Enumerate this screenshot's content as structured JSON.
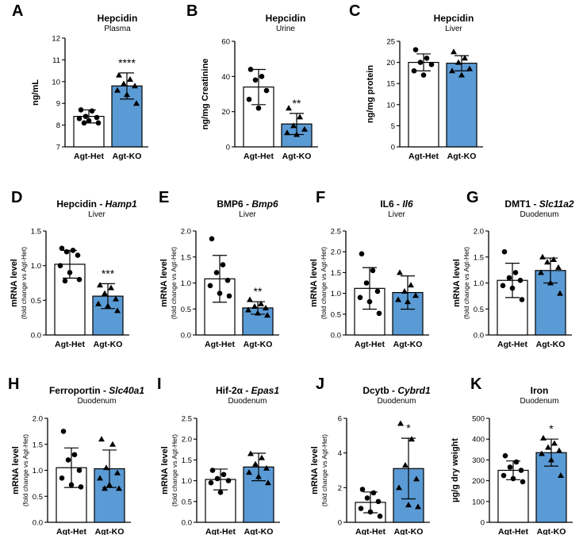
{
  "colors": {
    "het_fill": "#ffffff",
    "ko_fill": "#5b9bd5",
    "ink": "#000000"
  },
  "chart_data": [
    {
      "type": "bar",
      "panel_letter": "A",
      "title": "Hepcidin",
      "subtitle": "Plasma",
      "ylabel_main": "ng/mL",
      "ylabel_sub": "",
      "categories": [
        "Agt-Het",
        "Agt-KO"
      ],
      "ylim": [
        7,
        12
      ],
      "yticks": [
        7,
        8,
        9,
        10,
        11,
        12
      ],
      "ytick_labels": [
        "7",
        "8",
        "9",
        "10",
        "11",
        "12"
      ],
      "series": [
        {
          "name": "Agt-Het",
          "mean": 8.4,
          "sd": 0.3,
          "points": [
            8.7,
            8.65,
            8.4,
            8.35,
            8.3,
            8.2,
            8.1,
            8.1
          ]
        },
        {
          "name": "Agt-KO",
          "mean": 9.8,
          "sd": 0.6,
          "points": [
            10.3,
            10.1,
            9.9,
            9.8,
            9.6,
            9.4,
            9.0
          ]
        }
      ],
      "significance": "****"
    },
    {
      "type": "bar",
      "panel_letter": "B",
      "title": "Hepcidin",
      "subtitle": "Urine",
      "ylabel_main": "ng/mg Creatinine",
      "ylabel_sub": "",
      "categories": [
        "Agt-Het",
        "Agt-KO"
      ],
      "ylim": [
        0,
        60
      ],
      "yticks": [
        0,
        20,
        40,
        60
      ],
      "ytick_labels": [
        "0",
        "20",
        "40",
        "60"
      ],
      "series": [
        {
          "name": "Agt-Het",
          "mean": 34,
          "sd": 10,
          "points": [
            44,
            40,
            38,
            32,
            27,
            22
          ]
        },
        {
          "name": "Agt-KO",
          "mean": 13,
          "sd": 6,
          "points": [
            22,
            17,
            12,
            10,
            8,
            7
          ]
        }
      ],
      "significance": "**"
    },
    {
      "type": "bar",
      "panel_letter": "C",
      "title": "Hepcidin",
      "subtitle": "Liver",
      "ylabel_main": "ng/mg protein",
      "ylabel_sub": "",
      "categories": [
        "Agt-Het",
        "Agt-KO"
      ],
      "ylim": [
        0,
        25
      ],
      "yticks": [
        0,
        5,
        10,
        15,
        20,
        25
      ],
      "ytick_labels": [
        "0",
        "5",
        "10",
        "15",
        "20",
        "25"
      ],
      "series": [
        {
          "name": "Agt-Het",
          "mean": 20,
          "sd": 2,
          "points": [
            23,
            21,
            20,
            19.5,
            18,
            17
          ]
        },
        {
          "name": "Agt-KO",
          "mean": 19.8,
          "sd": 1.8,
          "points": [
            22.5,
            21,
            20,
            18.5,
            18,
            17
          ]
        }
      ],
      "significance": ""
    },
    {
      "type": "bar",
      "panel_letter": "D",
      "title": "Hepcidin - ",
      "title_italic": "Hamp1",
      "subtitle": "Liver",
      "ylabel_main": "mRNA level",
      "ylabel_sub": "(fold change vs Agt-Het)",
      "categories": [
        "Agt-Het",
        "Agt-KO"
      ],
      "ylim": [
        0,
        1.5
      ],
      "yticks": [
        0,
        0.5,
        1.0,
        1.5
      ],
      "ytick_labels": [
        "0.0",
        "0.5",
        "1.0",
        "1.5"
      ],
      "series": [
        {
          "name": "Agt-Het",
          "mean": 1.02,
          "sd": 0.2,
          "points": [
            1.25,
            1.22,
            1.2,
            1.15,
            1.0,
            0.9,
            0.8,
            0.78
          ]
        },
        {
          "name": "Agt-KO",
          "mean": 0.56,
          "sd": 0.18,
          "points": [
            0.72,
            0.68,
            0.6,
            0.52,
            0.45,
            0.42,
            0.35
          ]
        }
      ],
      "significance": "***"
    },
    {
      "type": "bar",
      "panel_letter": "E",
      "title": "BMP6 - ",
      "title_italic": "Bmp6",
      "subtitle": "Liver",
      "ylabel_main": "mRNA level",
      "ylabel_sub": "(fold change vs Agt-Het)",
      "categories": [
        "Agt-Het",
        "Agt-KO"
      ],
      "ylim": [
        0,
        2.0
      ],
      "yticks": [
        0,
        0.5,
        1.0,
        1.5,
        2.0
      ],
      "ytick_labels": [
        "0.0",
        "0.5",
        "1.0",
        "1.5",
        "2.0"
      ],
      "series": [
        {
          "name": "Agt-Het",
          "mean": 1.08,
          "sd": 0.45,
          "points": [
            1.85,
            1.35,
            1.2,
            1.05,
            0.95,
            0.8,
            0.75
          ]
        },
        {
          "name": "Agt-KO",
          "mean": 0.52,
          "sd": 0.12,
          "points": [
            0.68,
            0.6,
            0.55,
            0.52,
            0.48,
            0.42,
            0.38
          ]
        }
      ],
      "significance": "**"
    },
    {
      "type": "bar",
      "panel_letter": "F",
      "title": "IL6 - ",
      "title_italic": "Il6",
      "subtitle": "Liver",
      "ylabel_main": "mRNA level",
      "ylabel_sub": "(fold change vs Agt-Het)",
      "categories": [
        "Agt-Het",
        "Agt-KO"
      ],
      "ylim": [
        0,
        2.5
      ],
      "yticks": [
        0,
        0.5,
        1.0,
        1.5,
        2.0,
        2.5
      ],
      "ytick_labels": [
        "0.0",
        "0.5",
        "1.0",
        "1.5",
        "2.0",
        "2.5"
      ],
      "series": [
        {
          "name": "Agt-Het",
          "mean": 1.12,
          "sd": 0.5,
          "points": [
            1.95,
            1.55,
            1.25,
            1.05,
            0.9,
            0.8,
            0.52
          ]
        },
        {
          "name": "Agt-KO",
          "mean": 1.02,
          "sd": 0.4,
          "points": [
            1.5,
            1.2,
            1.05,
            0.95,
            0.85,
            0.8
          ]
        }
      ],
      "significance": ""
    },
    {
      "type": "bar",
      "panel_letter": "G",
      "title": "DMT1 - ",
      "title_italic": "Slc11a2",
      "subtitle": "Duodenum",
      "ylabel_main": "mRNA level",
      "ylabel_sub": "(fold change vs Agt-Het)",
      "categories": [
        "Agt-Het",
        "Agt-KO"
      ],
      "ylim": [
        0,
        2.0
      ],
      "yticks": [
        0,
        0.5,
        1.0,
        1.5,
        2.0
      ],
      "ytick_labels": [
        "0.0",
        "0.5",
        "1.0",
        "1.5",
        "2.0"
      ],
      "series": [
        {
          "name": "Agt-Het",
          "mean": 1.05,
          "sd": 0.33,
          "points": [
            1.6,
            1.2,
            1.1,
            1.05,
            0.95,
            0.9,
            0.68
          ]
        },
        {
          "name": "Agt-KO",
          "mean": 1.24,
          "sd": 0.24,
          "points": [
            1.5,
            1.45,
            1.4,
            1.3,
            1.2,
            1.0,
            0.8
          ]
        }
      ],
      "significance": ""
    },
    {
      "type": "bar",
      "panel_letter": "H",
      "title": "Ferroportin - ",
      "title_italic": "Slc40a1",
      "subtitle": "Duodenum",
      "ylabel_main": "mRNA level",
      "ylabel_sub": "(fold change vs Agt-Het)",
      "categories": [
        "Agt-Het",
        "Agt-KO"
      ],
      "ylim": [
        0,
        2.0
      ],
      "yticks": [
        0,
        0.5,
        1.0,
        1.5,
        2.0
      ],
      "ytick_labels": [
        "0.0",
        "0.5",
        "1.0",
        "1.5",
        "2.0"
      ],
      "series": [
        {
          "name": "Agt-Het",
          "mean": 1.05,
          "sd": 0.38,
          "points": [
            1.75,
            1.3,
            1.2,
            1.0,
            0.85,
            0.72,
            0.68
          ]
        },
        {
          "name": "Agt-KO",
          "mean": 1.03,
          "sd": 0.36,
          "points": [
            1.6,
            1.5,
            1.05,
            0.95,
            0.85,
            0.72,
            0.65,
            0.65
          ]
        }
      ],
      "significance": ""
    },
    {
      "type": "bar",
      "panel_letter": "I",
      "title": "Hif-2α - ",
      "title_italic": "Epas1",
      "subtitle": "Duodenum",
      "ylabel_main": "mRNA level",
      "ylabel_sub": "(fold change vs Agt-Het)",
      "categories": [
        "Agt-Het",
        "Agt-KO"
      ],
      "ylim": [
        0,
        2.5
      ],
      "yticks": [
        0,
        0.5,
        1.0,
        1.5,
        2.0,
        2.5
      ],
      "ytick_labels": [
        "0.0",
        "0.5",
        "1.0",
        "1.5",
        "2.0",
        "2.5"
      ],
      "series": [
        {
          "name": "Agt-Het",
          "mean": 1.03,
          "sd": 0.25,
          "points": [
            1.25,
            1.15,
            1.05,
            1.0,
            0.95,
            0.72
          ]
        },
        {
          "name": "Agt-KO",
          "mean": 1.33,
          "sd": 0.33,
          "points": [
            1.65,
            1.55,
            1.4,
            1.3,
            1.2,
            1.1,
            0.95
          ]
        }
      ],
      "significance": ""
    },
    {
      "type": "bar",
      "panel_letter": "J",
      "title": "Dcytb - ",
      "title_italic": "Cybrd1",
      "subtitle": "Duodenum",
      "ylabel_main": "mRNA level",
      "ylabel_sub": "(fold change vs Agt-Het)",
      "categories": [
        "Agt-Het",
        "Agt-KO"
      ],
      "ylim": [
        0,
        6
      ],
      "yticks": [
        0,
        2,
        4,
        6
      ],
      "ytick_labels": [
        "0",
        "2",
        "4",
        "6"
      ],
      "series": [
        {
          "name": "Agt-Het",
          "mean": 1.15,
          "sd": 0.6,
          "points": [
            1.9,
            1.7,
            1.4,
            1.2,
            0.8,
            0.6,
            0.35
          ]
        },
        {
          "name": "Agt-KO",
          "mean": 3.1,
          "sd": 1.75,
          "points": [
            5.7,
            4.8,
            3.3,
            2.5,
            2.0,
            1.0,
            0.9
          ]
        }
      ],
      "significance": "*"
    },
    {
      "type": "bar",
      "panel_letter": "K",
      "title": "Iron",
      "subtitle": "Duodenum",
      "ylabel_main": "µg/g dry weight",
      "ylabel_sub": "",
      "categories": [
        "Agt-Het",
        "Agt-KO"
      ],
      "ylim": [
        0,
        500
      ],
      "yticks": [
        0,
        100,
        200,
        300,
        400,
        500
      ],
      "ytick_labels": [
        "0",
        "100",
        "200",
        "300",
        "400",
        "500"
      ],
      "series": [
        {
          "name": "Agt-Het",
          "mean": 250,
          "sd": 45,
          "points": [
            320,
            290,
            265,
            250,
            225,
            210,
            195
          ]
        },
        {
          "name": "Agt-KO",
          "mean": 335,
          "sd": 65,
          "points": [
            405,
            380,
            360,
            345,
            330,
            300,
            225
          ]
        }
      ],
      "significance": "*"
    }
  ]
}
